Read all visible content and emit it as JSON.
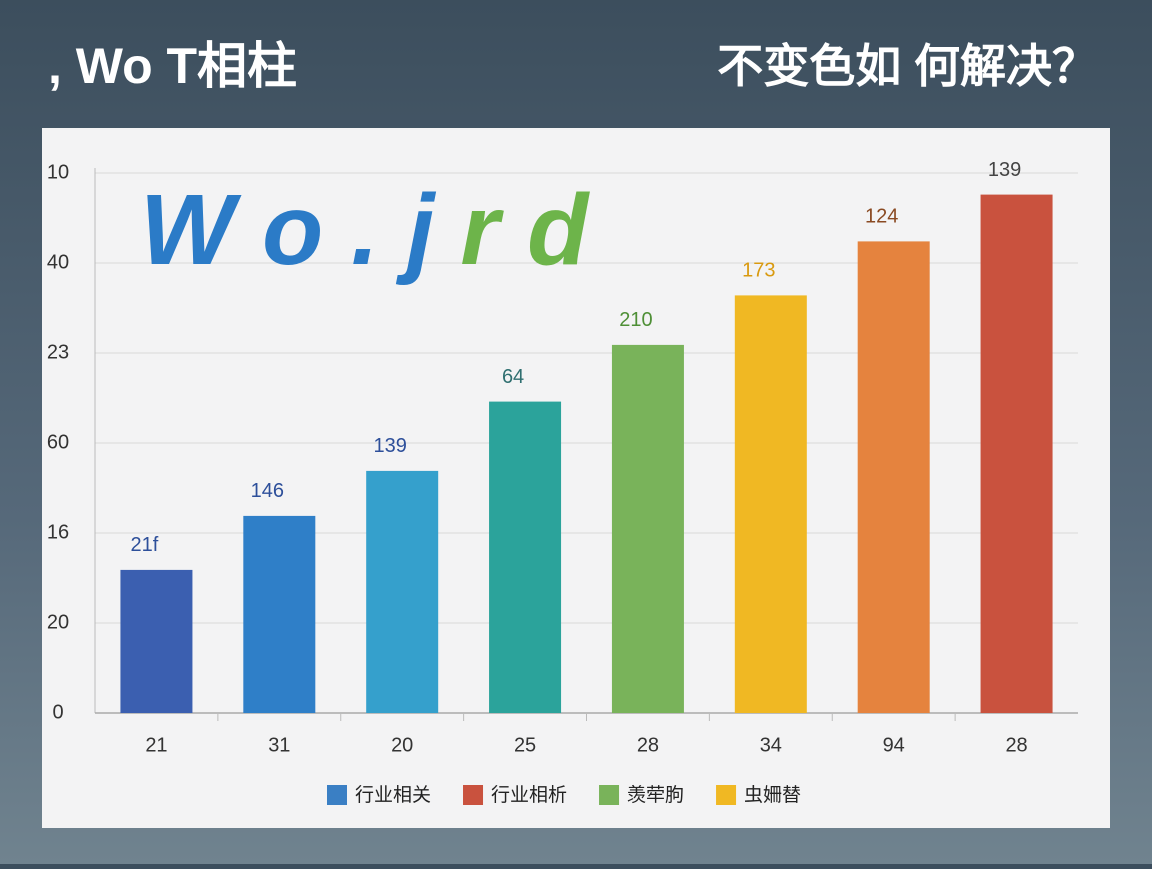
{
  "header": {
    "left": ", Wo T相柱",
    "right": "不变色如 何解决？"
  },
  "chart_data": {
    "type": "bar",
    "overlay_text": [
      {
        "text": "W o . j",
        "color": "#2b7bc7"
      },
      {
        "text": "r d",
        "color": "#6db44a"
      }
    ],
    "categories": [
      "21",
      "31",
      "20",
      "25",
      "28",
      "34",
      "94",
      "28"
    ],
    "values": [
      1.59,
      2.19,
      2.69,
      3.46,
      4.09,
      4.64,
      5.24,
      5.76
    ],
    "bar_labels": [
      "21f",
      "146",
      "139",
      "64",
      "210",
      "173",
      "124",
      "139"
    ],
    "bar_label_colors": [
      "#2d4f9a",
      "#2d4f9a",
      "#2d4f9a",
      "#2f6f70",
      "#4e8f36",
      "#d99a10",
      "#8a4a22",
      "#444444"
    ],
    "colors": [
      "#3b5fb0",
      "#2f7fc8",
      "#35a0cc",
      "#2ba39b",
      "#79b35a",
      "#f0b823",
      "#e5833e",
      "#c9523e"
    ],
    "ylim": [
      0,
      6
    ],
    "yticks": [
      0,
      {
        "value": 1,
        "label": "20"
      },
      {
        "value": 2,
        "label": "16"
      },
      {
        "value": 3,
        "label": "60"
      },
      {
        "value": 4,
        "label": "23"
      },
      {
        "value": 5,
        "label": "40"
      },
      {
        "value": 6,
        "label": "10"
      }
    ],
    "grid": true,
    "legend": [
      {
        "name": "行业相关",
        "color": "#3a7fc4"
      },
      {
        "name": "行业相析",
        "color": "#c9523e"
      },
      {
        "name": "羡荦朐",
        "color": "#79b35a"
      },
      {
        "name": "虫姍替",
        "color": "#f0b823"
      }
    ]
  }
}
